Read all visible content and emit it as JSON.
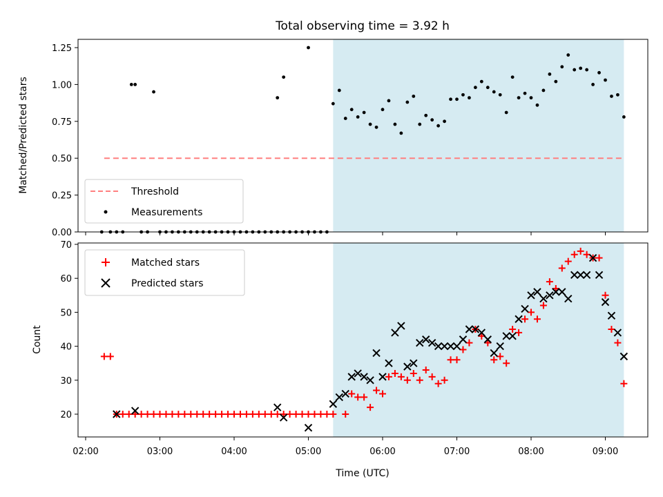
{
  "title": "Total observing time = 3.92 h",
  "top_panel": {
    "ylabel": "Matched/Predicted stars",
    "yticks": [
      "0.00",
      "0.25",
      "0.50",
      "0.75",
      "1.00",
      "1.25"
    ]
  },
  "bottom_panel": {
    "ylabel": "Count",
    "yticks": [
      "20",
      "30",
      "40",
      "50",
      "60",
      "70"
    ]
  },
  "xlabel": "Time (UTC)",
  "xticks": [
    "02:00",
    "03:00",
    "04:00",
    "05:00",
    "06:00",
    "07:00",
    "08:00",
    "09:00"
  ],
  "legend_top": {
    "threshold": "Threshold",
    "measurements": "Measurements"
  },
  "legend_bottom": {
    "matched": "Matched stars",
    "predicted": "Predicted stars"
  },
  "colors": {
    "threshold": "#ff7f7f",
    "shade": "#add8e6",
    "matched": "#ff0000",
    "predicted": "#000000",
    "measurement": "#000000"
  },
  "chart_data": [
    {
      "type": "scatter",
      "panel": "top",
      "title": "Total observing time = 3.92 h",
      "xlabel": "",
      "ylabel": "Matched/Predicted stars",
      "xlim": [
        "02:00",
        "09:30"
      ],
      "ylim": [
        0,
        1.3
      ],
      "shaded_interval": [
        "05:20",
        "09:15"
      ],
      "threshold": {
        "name": "Threshold",
        "y": 0.5,
        "x": [
          "02:15",
          "09:15"
        ],
        "style": "dashed"
      },
      "series": [
        {
          "name": "Measurements",
          "points": [
            [
              "02:13",
              0
            ],
            [
              "02:20",
              0
            ],
            [
              "02:25",
              0
            ],
            [
              "02:30",
              0
            ],
            [
              "02:37",
              1.0
            ],
            [
              "02:45",
              0
            ],
            [
              "02:50",
              0
            ],
            [
              "03:00",
              0
            ],
            [
              "03:05",
              0
            ],
            [
              "03:10",
              0
            ],
            [
              "03:15",
              0
            ],
            [
              "03:20",
              0
            ],
            [
              "03:25",
              0
            ],
            [
              "03:30",
              0
            ],
            [
              "03:35",
              0
            ],
            [
              "03:40",
              0
            ],
            [
              "03:45",
              0
            ],
            [
              "03:50",
              0
            ],
            [
              "03:55",
              0
            ],
            [
              "04:00",
              0
            ],
            [
              "04:05",
              0
            ],
            [
              "04:10",
              0
            ],
            [
              "04:15",
              0
            ],
            [
              "04:20",
              0
            ],
            [
              "04:25",
              0
            ],
            [
              "04:30",
              0
            ],
            [
              "04:35",
              0
            ],
            [
              "04:40",
              0
            ],
            [
              "04:45",
              0
            ],
            [
              "04:50",
              0
            ],
            [
              "04:55",
              0
            ],
            [
              "05:00",
              0
            ],
            [
              "05:05",
              0
            ],
            [
              "05:10",
              0
            ],
            [
              "05:15",
              0
            ],
            [
              "02:40",
              1.0
            ],
            [
              "02:55",
              0.95
            ],
            [
              "04:35",
              0.91
            ],
            [
              "04:40",
              1.05
            ],
            [
              "05:00",
              1.25
            ],
            [
              "05:20",
              0.87
            ],
            [
              "05:25",
              0.96
            ],
            [
              "05:30",
              0.77
            ],
            [
              "05:35",
              0.83
            ],
            [
              "05:40",
              0.78
            ],
            [
              "05:45",
              0.81
            ],
            [
              "05:50",
              0.73
            ],
            [
              "05:55",
              0.71
            ],
            [
              "06:00",
              0.83
            ],
            [
              "06:05",
              0.89
            ],
            [
              "06:10",
              0.73
            ],
            [
              "06:15",
              0.67
            ],
            [
              "06:20",
              0.88
            ],
            [
              "06:25",
              0.92
            ],
            [
              "06:30",
              0.73
            ],
            [
              "06:35",
              0.79
            ],
            [
              "06:40",
              0.76
            ],
            [
              "06:45",
              0.72
            ],
            [
              "06:50",
              0.75
            ],
            [
              "06:55",
              0.9
            ],
            [
              "07:00",
              0.9
            ],
            [
              "07:05",
              0.93
            ],
            [
              "07:10",
              0.91
            ],
            [
              "07:15",
              0.98
            ],
            [
              "07:20",
              1.02
            ],
            [
              "07:25",
              0.98
            ],
            [
              "07:30",
              0.95
            ],
            [
              "07:35",
              0.93
            ],
            [
              "07:40",
              0.81
            ],
            [
              "07:45",
              1.05
            ],
            [
              "07:50",
              0.91
            ],
            [
              "07:55",
              0.94
            ],
            [
              "08:00",
              0.91
            ],
            [
              "08:05",
              0.86
            ],
            [
              "08:10",
              0.96
            ],
            [
              "08:15",
              1.07
            ],
            [
              "08:20",
              1.02
            ],
            [
              "08:25",
              1.12
            ],
            [
              "08:30",
              1.2
            ],
            [
              "08:35",
              1.1
            ],
            [
              "08:40",
              1.11
            ],
            [
              "08:45",
              1.1
            ],
            [
              "08:50",
              1.0
            ],
            [
              "08:55",
              1.08
            ],
            [
              "09:00",
              1.03
            ],
            [
              "09:05",
              0.92
            ],
            [
              "09:10",
              0.93
            ],
            [
              "09:15",
              0.78
            ]
          ]
        }
      ],
      "legend": "lower-left"
    },
    {
      "type": "scatter",
      "panel": "bottom",
      "xlabel": "Time (UTC)",
      "ylabel": "Count",
      "xlim": [
        "02:00",
        "09:30"
      ],
      "ylim": [
        13,
        70
      ],
      "shaded_interval": [
        "05:20",
        "09:15"
      ],
      "series": [
        {
          "name": "Matched stars",
          "marker": "+",
          "points": [
            [
              "02:15",
              37
            ],
            [
              "02:20",
              37
            ],
            [
              "02:25",
              20
            ],
            [
              "02:30",
              20
            ],
            [
              "02:35",
              20
            ],
            [
              "02:40",
              20
            ],
            [
              "02:45",
              20
            ],
            [
              "02:50",
              20
            ],
            [
              "02:55",
              20
            ],
            [
              "03:00",
              20
            ],
            [
              "03:05",
              20
            ],
            [
              "03:10",
              20
            ],
            [
              "03:15",
              20
            ],
            [
              "03:20",
              20
            ],
            [
              "03:25",
              20
            ],
            [
              "03:30",
              20
            ],
            [
              "03:35",
              20
            ],
            [
              "03:40",
              20
            ],
            [
              "03:45",
              20
            ],
            [
              "03:50",
              20
            ],
            [
              "03:55",
              20
            ],
            [
              "04:00",
              20
            ],
            [
              "04:05",
              20
            ],
            [
              "04:10",
              20
            ],
            [
              "04:15",
              20
            ],
            [
              "04:20",
              20
            ],
            [
              "04:25",
              20
            ],
            [
              "04:30",
              20
            ],
            [
              "04:35",
              20
            ],
            [
              "04:40",
              20
            ],
            [
              "04:45",
              20
            ],
            [
              "04:50",
              20
            ],
            [
              "04:55",
              20
            ],
            [
              "05:00",
              20
            ],
            [
              "05:05",
              20
            ],
            [
              "05:10",
              20
            ],
            [
              "05:15",
              20
            ],
            [
              "05:20",
              20
            ],
            [
              "05:30",
              20
            ],
            [
              "05:35",
              26
            ],
            [
              "05:40",
              25
            ],
            [
              "05:45",
              25
            ],
            [
              "05:50",
              22
            ],
            [
              "05:55",
              27
            ],
            [
              "06:00",
              26
            ],
            [
              "06:05",
              31
            ],
            [
              "06:10",
              32
            ],
            [
              "06:15",
              31
            ],
            [
              "06:20",
              30
            ],
            [
              "06:25",
              32
            ],
            [
              "06:30",
              30
            ],
            [
              "06:35",
              33
            ],
            [
              "06:40",
              31
            ],
            [
              "06:45",
              29
            ],
            [
              "06:50",
              30
            ],
            [
              "06:55",
              36
            ],
            [
              "07:00",
              36
            ],
            [
              "07:05",
              39
            ],
            [
              "07:10",
              41
            ],
            [
              "07:15",
              45
            ],
            [
              "07:20",
              43
            ],
            [
              "07:25",
              41
            ],
            [
              "07:30",
              36
            ],
            [
              "07:35",
              37
            ],
            [
              "07:40",
              35
            ],
            [
              "07:45",
              45
            ],
            [
              "07:50",
              44
            ],
            [
              "07:55",
              48
            ],
            [
              "08:00",
              50
            ],
            [
              "08:05",
              48
            ],
            [
              "08:10",
              52
            ],
            [
              "08:15",
              59
            ],
            [
              "08:20",
              57
            ],
            [
              "08:25",
              63
            ],
            [
              "08:30",
              65
            ],
            [
              "08:35",
              67
            ],
            [
              "08:40",
              68
            ],
            [
              "08:45",
              67
            ],
            [
              "08:50",
              66
            ],
            [
              "08:55",
              66
            ],
            [
              "09:00",
              55
            ],
            [
              "09:05",
              45
            ],
            [
              "09:10",
              41
            ],
            [
              "09:15",
              29
            ]
          ]
        },
        {
          "name": "Predicted stars",
          "marker": "x",
          "points": [
            [
              "02:25",
              20
            ],
            [
              "02:40",
              21
            ],
            [
              "04:35",
              22
            ],
            [
              "04:40",
              19
            ],
            [
              "05:00",
              16
            ],
            [
              "05:20",
              23
            ],
            [
              "05:25",
              25
            ],
            [
              "05:30",
              26
            ],
            [
              "05:35",
              31
            ],
            [
              "05:40",
              32
            ],
            [
              "05:45",
              31
            ],
            [
              "05:50",
              30
            ],
            [
              "05:55",
              38
            ],
            [
              "06:00",
              31
            ],
            [
              "06:05",
              35
            ],
            [
              "06:10",
              44
            ],
            [
              "06:15",
              46
            ],
            [
              "06:20",
              34
            ],
            [
              "06:25",
              35
            ],
            [
              "06:30",
              41
            ],
            [
              "06:35",
              42
            ],
            [
              "06:40",
              41
            ],
            [
              "06:45",
              40
            ],
            [
              "06:50",
              40
            ],
            [
              "06:55",
              40
            ],
            [
              "07:00",
              40
            ],
            [
              "07:05",
              42
            ],
            [
              "07:10",
              45
            ],
            [
              "07:15",
              45
            ],
            [
              "07:20",
              44
            ],
            [
              "07:25",
              42
            ],
            [
              "07:30",
              38
            ],
            [
              "07:35",
              40
            ],
            [
              "07:40",
              43
            ],
            [
              "07:45",
              43
            ],
            [
              "07:50",
              48
            ],
            [
              "07:55",
              51
            ],
            [
              "08:00",
              55
            ],
            [
              "08:05",
              56
            ],
            [
              "08:10",
              54
            ],
            [
              "08:15",
              55
            ],
            [
              "08:20",
              56
            ],
            [
              "08:25",
              56
            ],
            [
              "08:30",
              54
            ],
            [
              "08:35",
              61
            ],
            [
              "08:40",
              61
            ],
            [
              "08:45",
              61
            ],
            [
              "08:50",
              66
            ],
            [
              "08:55",
              61
            ],
            [
              "09:00",
              53
            ],
            [
              "09:05",
              49
            ],
            [
              "09:10",
              44
            ],
            [
              "09:15",
              37
            ]
          ]
        }
      ],
      "legend": "top-left"
    }
  ]
}
